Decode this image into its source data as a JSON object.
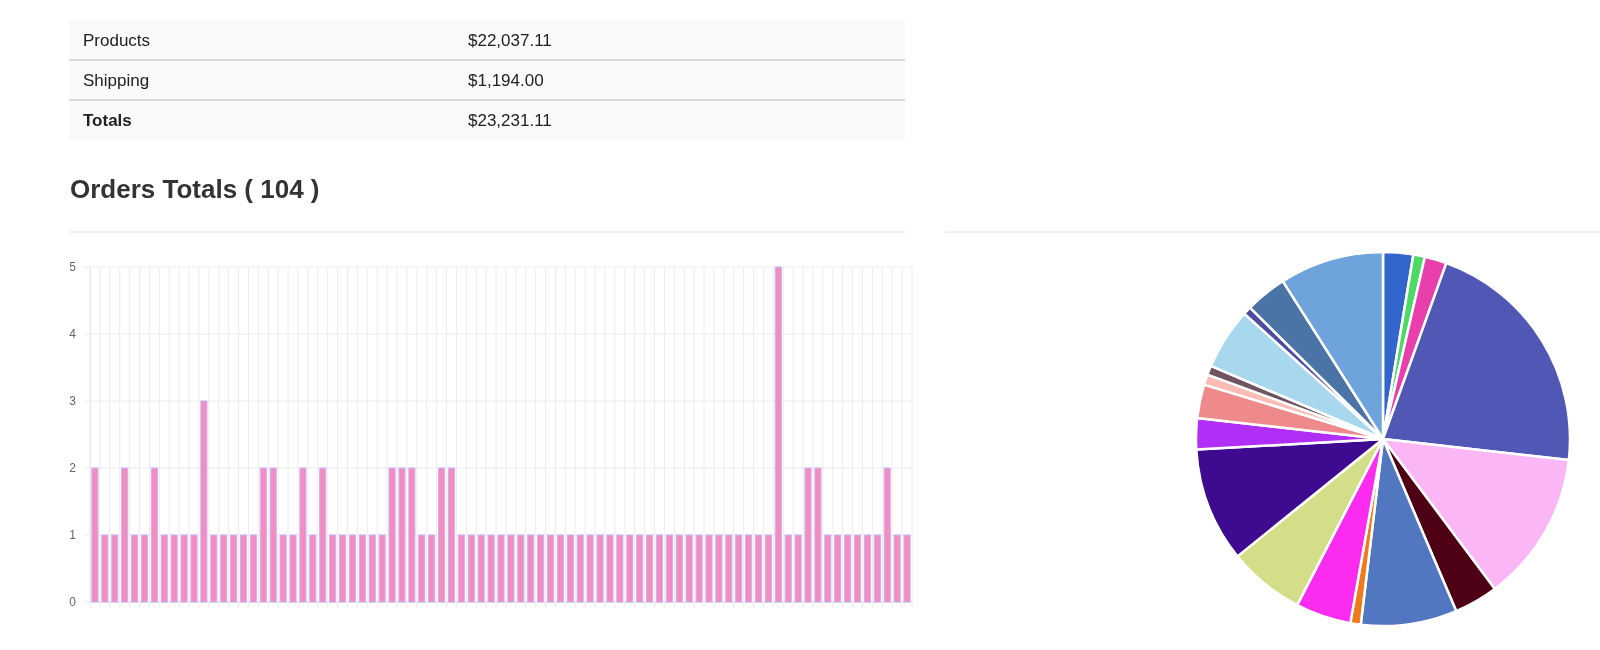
{
  "chart_data": [
    {
      "type": "other",
      "categories": [
        "Products",
        "Shipping",
        "Totals"
      ],
      "values": [
        22037.11,
        1194.0,
        23231.11
      ],
      "value_labels": [
        "$22,037.11",
        "$1,194.00",
        "$23,231.11"
      ]
    },
    {
      "type": "bar",
      "title": "Orders Totals ( 104 )",
      "categories": [
        null,
        null,
        null,
        null,
        null,
        null,
        null,
        null,
        null,
        null,
        null,
        null,
        null,
        null,
        null,
        null,
        null,
        null,
        null,
        null,
        null,
        null,
        null,
        null,
        null,
        null,
        null,
        null,
        null,
        null,
        null,
        null,
        null,
        null,
        null,
        null,
        null,
        null,
        null,
        null,
        null,
        null,
        null,
        null,
        null,
        null,
        null,
        null,
        null,
        null,
        null,
        null,
        null,
        null,
        null,
        null,
        null,
        null,
        null,
        null,
        null,
        null,
        null,
        null,
        null,
        null,
        null,
        null,
        null,
        null,
        null,
        null,
        null,
        null,
        null,
        null,
        null,
        null,
        null,
        null,
        null,
        null,
        null
      ],
      "values": [
        2,
        1,
        1,
        2,
        1,
        1,
        2,
        1,
        1,
        1,
        1,
        3,
        1,
        1,
        1,
        1,
        1,
        2,
        2,
        1,
        1,
        2,
        1,
        2,
        1,
        1,
        1,
        1,
        1,
        1,
        2,
        2,
        2,
        1,
        1,
        2,
        2,
        1,
        1,
        1,
        1,
        1,
        1,
        1,
        1,
        1,
        1,
        1,
        1,
        1,
        1,
        1,
        1,
        1,
        1,
        1,
        1,
        1,
        1,
        1,
        1,
        1,
        1,
        1,
        1,
        1,
        1,
        1,
        1,
        5,
        1,
        1,
        2,
        2,
        1,
        1,
        1,
        1,
        1,
        1,
        2,
        1,
        1
      ],
      "color": "#f48cc0",
      "ylim": [
        0,
        5
      ],
      "yticks": [
        0,
        1,
        2,
        3,
        4,
        5
      ],
      "grid": true
    },
    {
      "type": "pie",
      "categories": [
        null,
        null,
        null,
        null,
        null,
        null,
        null,
        null,
        null,
        null,
        null,
        null,
        null,
        null,
        null,
        null,
        null,
        null,
        null
      ],
      "values": [
        2.6,
        1.0,
        1.9,
        21.3,
        13.0,
        3.8,
        8.3,
        0.9,
        4.8,
        6.6,
        9.9,
        2.7,
        2.9,
        0.9,
        0.8,
        5.3,
        0.7,
        3.6,
        9.0
      ],
      "colors": [
        "#3366cc",
        "#4cd964",
        "#e83fad",
        "#5157b5",
        "#fbb6f5",
        "#4e0014",
        "#5077c0",
        "#f07a1c",
        "#fb2cef",
        "#d4dd87",
        "#3e0a8f",
        "#b02ef5",
        "#ef8a8c",
        "#fbbcb6",
        "#6e5560",
        "#a8d8ee",
        "#4b4ca0",
        "#4a74a6",
        "#6fa3dc"
      ]
    }
  ]
}
